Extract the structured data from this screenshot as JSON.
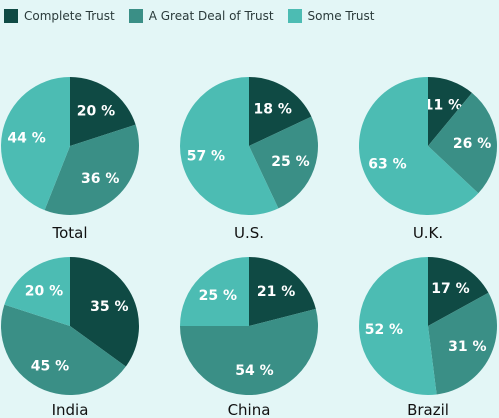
{
  "legend": [
    {
      "label": "Complete Trust",
      "color": "#0f4a44"
    },
    {
      "label": "A Great Deal of Trust",
      "color": "#3a8f86"
    },
    {
      "label": "Some Trust",
      "color": "#4cbcb3"
    }
  ],
  "chart_data": {
    "type": "pie",
    "series": [
      "Complete Trust",
      "A Great Deal of Trust",
      "Some Trust"
    ],
    "label_color": "#ffffff",
    "unit": " %",
    "charts": [
      {
        "name": "Total",
        "values": [
          20,
          36,
          44
        ]
      },
      {
        "name": "U.S.",
        "values": [
          18,
          25,
          57
        ]
      },
      {
        "name": "U.K.",
        "values": [
          11,
          26,
          63
        ]
      },
      {
        "name": "India",
        "values": [
          35,
          45,
          20
        ]
      },
      {
        "name": "China",
        "values": [
          21,
          54,
          25
        ]
      },
      {
        "name": "Brazil",
        "values": [
          17,
          31,
          52
        ]
      }
    ]
  }
}
